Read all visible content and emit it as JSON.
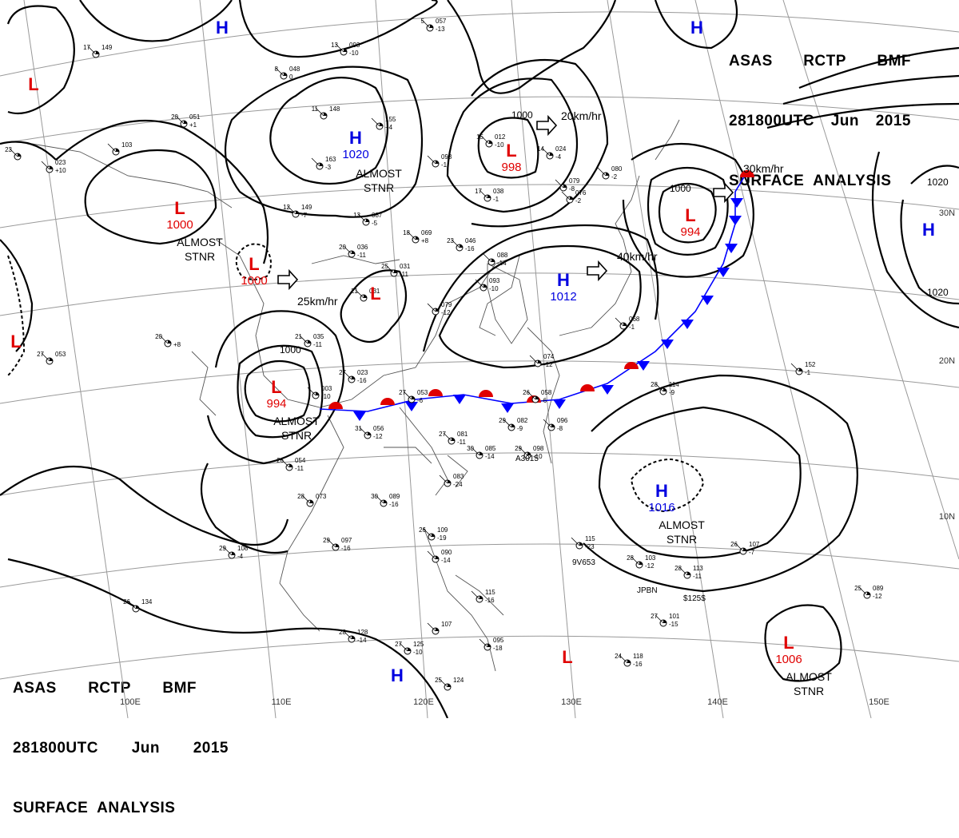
{
  "header": {
    "line1": [
      "ASAS",
      "RCTP",
      "BMF"
    ],
    "line2": [
      "281800UTC",
      "Jun",
      "2015"
    ],
    "line3": "SURFACE  ANALYSIS"
  },
  "pressure_centers": [
    {
      "type": "H",
      "value": "1020",
      "note": ""
    },
    {
      "type": "H",
      "value": "1012",
      "note": ""
    },
    {
      "type": "H",
      "value": "1016",
      "note": "ALMOST\nSTNR"
    },
    {
      "type": "L",
      "value": "998",
      "note": ""
    },
    {
      "type": "L",
      "value": "994",
      "note": ""
    },
    {
      "type": "L",
      "value": "1000",
      "note": "ALMOST\nSTNR"
    },
    {
      "type": "L",
      "value": "1000",
      "note": ""
    },
    {
      "type": "L",
      "value": "994",
      "note": "ALMOST\nSTNR"
    },
    {
      "type": "L",
      "value": "1006",
      "note": "ALMOST\nSTNR"
    },
    {
      "type": "H",
      "value": "",
      "note": ""
    },
    {
      "type": "H",
      "value": "",
      "note": ""
    },
    {
      "type": "H",
      "value": "",
      "note": ""
    },
    {
      "type": "H",
      "value": "",
      "note": ""
    },
    {
      "type": "L",
      "value": "",
      "note": ""
    },
    {
      "type": "L",
      "value": "",
      "note": ""
    },
    {
      "type": "L",
      "value": "",
      "note": ""
    },
    {
      "type": "L",
      "value": "",
      "note": ""
    }
  ],
  "movement_labels": [
    "20km/hr",
    "30km/hr",
    "40km/hr",
    "25km/hr"
  ],
  "isobar_labels": [
    "1000",
    "1000",
    "1000",
    "1020",
    "1020"
  ],
  "text_labels": {
    "almost": "ALMOST",
    "stnr": "STNR",
    "ship": "A3015",
    "ship2": "9V653",
    "jpbn": "JPBN",
    "code": "$125$"
  },
  "longitude_labels": [
    "100E",
    "110E",
    "120E",
    "130E",
    "140E",
    "150E"
  ],
  "latitude_labels": [
    "30N",
    "20N",
    "10N"
  ],
  "stations": [
    {
      "t": "5",
      "p": "057",
      "d": "-13"
    },
    {
      "t": "13",
      "p": "093",
      "d": "-10"
    },
    {
      "t": "8",
      "p": "048",
      "d": "0"
    },
    {
      "t": "11",
      "p": "148",
      "d": ""
    },
    {
      "t": "",
      "p": "155",
      "d": "+4"
    },
    {
      "t": "",
      "p": "163",
      "d": "-3"
    },
    {
      "t": "12",
      "p": "149",
      "d": "-7"
    },
    {
      "t": "13",
      "p": "087",
      "d": "-5"
    },
    {
      "t": "",
      "p": "093",
      "d": "-1"
    },
    {
      "t": "17",
      "p": "038",
      "d": "-1"
    },
    {
      "t": "15",
      "p": "012",
      "d": "-10"
    },
    {
      "t": "14",
      "p": "024",
      "d": "-4"
    },
    {
      "t": "",
      "p": "079",
      "d": "-8"
    },
    {
      "t": "",
      "p": "080",
      "d": "-2"
    },
    {
      "t": "",
      "p": "076",
      "d": "-2"
    },
    {
      "t": "20",
      "p": "036",
      "d": "-11"
    },
    {
      "t": "25",
      "p": "031",
      "d": "-11"
    },
    {
      "t": "18",
      "p": "069",
      "d": "+8"
    },
    {
      "t": "23",
      "p": "046",
      "d": "-16"
    },
    {
      "t": "",
      "p": "088",
      "d": "-14"
    },
    {
      "t": "",
      "p": "093",
      "d": "-10"
    },
    {
      "t": "",
      "p": "079",
      "d": "-12"
    },
    {
      "t": "21",
      "p": "035",
      "d": "-11"
    },
    {
      "t": "21",
      "p": "031",
      "d": ""
    },
    {
      "t": "27",
      "p": "023",
      "d": "-16"
    },
    {
      "t": "",
      "p": "003",
      "d": "-10"
    },
    {
      "t": "27",
      "p": "053",
      "d": "-6"
    },
    {
      "t": "26",
      "p": "058",
      "d": "-6"
    },
    {
      "t": "",
      "p": "074",
      "d": "-12"
    },
    {
      "t": "",
      "p": "068",
      "d": "-1"
    },
    {
      "t": "",
      "p": "096",
      "d": "-8"
    },
    {
      "t": "29",
      "p": "082",
      "d": "-9"
    },
    {
      "t": "31",
      "p": "056",
      "d": "-12"
    },
    {
      "t": "27",
      "p": "081",
      "d": "-11"
    },
    {
      "t": "30",
      "p": "085",
      "d": "-14"
    },
    {
      "t": "29",
      "p": "098",
      "d": "-10"
    },
    {
      "t": "",
      "p": "083",
      "d": "-24"
    },
    {
      "t": "26",
      "p": "054",
      "d": "-11"
    },
    {
      "t": "28",
      "p": "073",
      "d": ""
    },
    {
      "t": "30",
      "p": "089",
      "d": "-16"
    },
    {
      "t": "29",
      "p": "097",
      "d": "-16"
    },
    {
      "t": "29",
      "p": "108",
      "d": "-4"
    },
    {
      "t": "26",
      "p": "109",
      "d": "-19"
    },
    {
      "t": "",
      "p": "090",
      "d": "-14"
    },
    {
      "t": "",
      "p": "115",
      "d": "-16"
    },
    {
      "t": "",
      "p": "107",
      "d": ""
    },
    {
      "t": "",
      "p": "095",
      "d": "-18"
    },
    {
      "t": "28",
      "p": "128",
      "d": "-14"
    },
    {
      "t": "27",
      "p": "125",
      "d": "-10"
    },
    {
      "t": "25",
      "p": "124",
      "d": ""
    },
    {
      "t": "26",
      "p": "134",
      "d": ""
    },
    {
      "t": "",
      "p": "115",
      "d": "-23"
    },
    {
      "t": "28",
      "p": "103",
      "d": "-12"
    },
    {
      "t": "28",
      "p": "113",
      "d": "-11"
    },
    {
      "t": "27",
      "p": "101",
      "d": "-15"
    },
    {
      "t": "24",
      "p": "118",
      "d": "-16"
    },
    {
      "t": "26",
      "p": "107",
      "d": "-7"
    },
    {
      "t": "25",
      "p": "089",
      "d": "-12"
    },
    {
      "t": "28",
      "p": "114",
      "d": "-9"
    },
    {
      "t": "",
      "p": "152",
      "d": "-1"
    },
    {
      "t": "20",
      "p": "051",
      "d": "+1"
    },
    {
      "t": "",
      "p": "103",
      "d": ""
    },
    {
      "t": "",
      "p": "023",
      "d": "+10"
    },
    {
      "t": "17",
      "p": "149",
      "d": ""
    },
    {
      "t": "20",
      "p": "",
      "d": "+8"
    },
    {
      "t": "27",
      "p": "053",
      "d": ""
    },
    {
      "t": "23",
      "p": "",
      "d": ""
    }
  ]
}
